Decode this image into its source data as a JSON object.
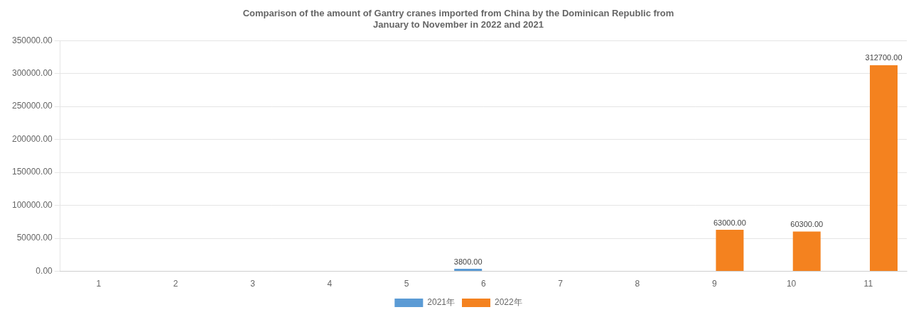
{
  "chart_data": {
    "type": "bar",
    "title": "Comparison of the amount of Gantry cranes imported from China by the Dominican Republic from\nJanuary to November in 2022 and 2021",
    "categories": [
      "1",
      "2",
      "3",
      "4",
      "5",
      "6",
      "7",
      "8",
      "9",
      "10",
      "11"
    ],
    "series": [
      {
        "name": "2021年",
        "color": "#5b9bd5",
        "values": [
          0,
          0,
          0,
          0,
          0,
          3800,
          0,
          0,
          0,
          0,
          0
        ],
        "value_labels": [
          null,
          null,
          null,
          null,
          null,
          "3800.00",
          null,
          null,
          null,
          null,
          null
        ]
      },
      {
        "name": "2022年",
        "color": "#f4821f",
        "values": [
          0,
          0,
          0,
          0,
          0,
          0,
          0,
          0,
          63000,
          60300,
          312700
        ],
        "value_labels": [
          null,
          null,
          null,
          null,
          null,
          null,
          null,
          null,
          "63000.00",
          "60300.00",
          "312700.00"
        ]
      }
    ],
    "ylim": [
      0,
      350000
    ],
    "yticks": [
      {
        "value": 0,
        "label": "0.00"
      },
      {
        "value": 50000,
        "label": "50000.00"
      },
      {
        "value": 100000,
        "label": "100000.00"
      },
      {
        "value": 150000,
        "label": "150000.00"
      },
      {
        "value": 200000,
        "label": "200000.00"
      },
      {
        "value": 250000,
        "label": "250000.00"
      },
      {
        "value": 300000,
        "label": "300000.00"
      },
      {
        "value": 350000,
        "label": "350000.00"
      }
    ],
    "grid": true,
    "legend": "bottom",
    "data_labels": true
  }
}
